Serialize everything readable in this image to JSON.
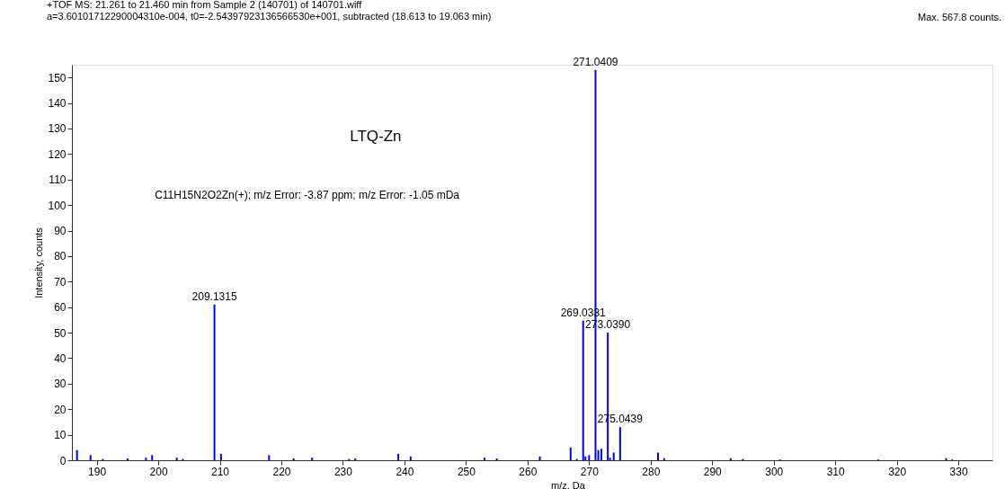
{
  "chart_data": {
    "type": "bar",
    "title": "+TOF MS: 21.261 to 21.460 min from Sample 2 (140701) of 140701.wiff",
    "subtitle": "a=3.60101712290004310e-004, t0=-2.54397923136566530e+001, subtracted (18.613 to 19.063 min)",
    "xlabel": "m/z, Da",
    "ylabel": "Intensity, counts",
    "x": [
      186.8,
      189,
      191,
      195,
      198,
      199,
      203,
      204,
      209.1315,
      210.2,
      218,
      222,
      225,
      231,
      232,
      239,
      241,
      253,
      255,
      262,
      267,
      268,
      269.0331,
      269.4,
      270,
      271.0409,
      271.5,
      272,
      273.039,
      273.4,
      274,
      275.0439,
      281.2,
      282.2,
      293,
      295,
      301,
      317,
      328,
      329
    ],
    "values": [
      4,
      2,
      0.5,
      0.7,
      1,
      2,
      1,
      0.5,
      61,
      2.5,
      2,
      0.7,
      1,
      0.5,
      0.7,
      2.5,
      1.5,
      1,
      0.7,
      1.5,
      5,
      0.5,
      54.7,
      1.5,
      2,
      153,
      4,
      4.5,
      50,
      1,
      3,
      13,
      3,
      0.8,
      0.8,
      0.5,
      0.3,
      0.3,
      0.8,
      0.3
    ],
    "color": "#0000ff",
    "xlim": [
      186.7,
      334.8
    ],
    "ylim": [
      0,
      155
    ],
    "xticks": [
      190,
      200,
      210,
      220,
      230,
      240,
      250,
      260,
      270,
      280,
      290,
      300,
      310,
      320,
      330
    ],
    "yticks": [
      0,
      10,
      20,
      30,
      40,
      50,
      60,
      70,
      80,
      90,
      100,
      110,
      120,
      130,
      140,
      150
    ],
    "grid": false,
    "annotations": [
      "Max. 567.8 counts.",
      "LTQ-Zn",
      "C11H15N2O2Zn(+); m/z Error: -3.87 ppm; m/z Error: -1.05 mDa",
      {
        "text": "209.1315",
        "x": 209.1315,
        "y": 61
      },
      {
        "text": "271.0409",
        "x": 271.0409,
        "y": 153
      },
      {
        "text": "269.0331",
        "x": 269.0331,
        "y": 54.7
      },
      {
        "text": "273.0390",
        "x": 273.039,
        "y": 50
      },
      {
        "text": "275.0439",
        "x": 275.0439,
        "y": 13
      }
    ]
  }
}
